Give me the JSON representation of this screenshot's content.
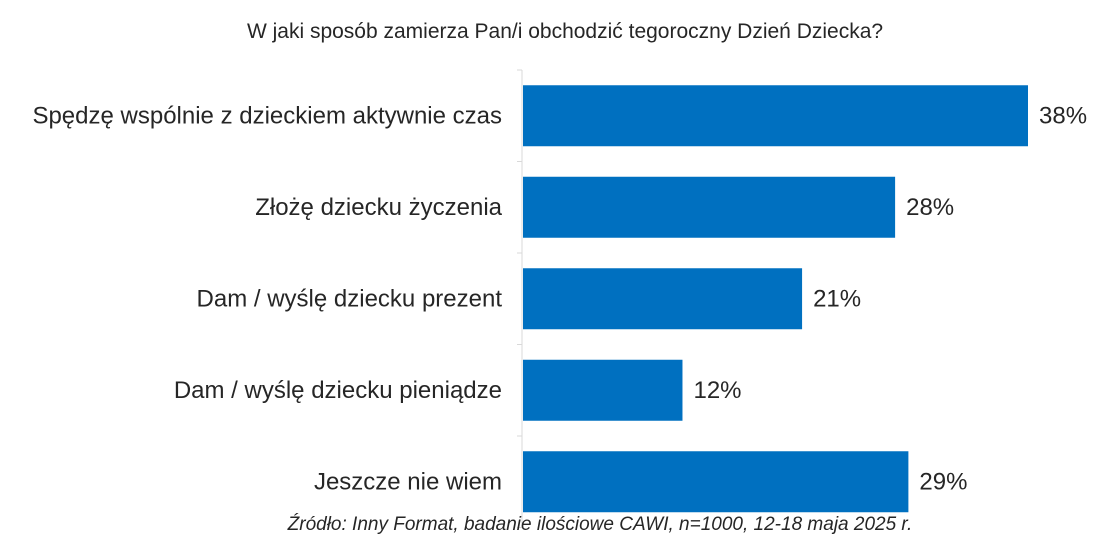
{
  "chart_data": {
    "type": "bar",
    "orientation": "horizontal",
    "title": "W jaki sposób zamierza Pan/i obchodzić tegoroczny Dzień Dziecka?",
    "categories": [
      "Spędzę wspólnie z dzieckiem aktywnie czas",
      "Złożę dziecku życzenia",
      "Dam / wyślę dziecku prezent",
      "Dam / wyślę dziecku pieniądze",
      "Jeszcze nie wiem"
    ],
    "values": [
      38,
      28,
      21,
      12,
      29
    ],
    "value_labels": [
      "38%",
      "28%",
      "21%",
      "12%",
      "29%"
    ],
    "unit": "%",
    "xlim": [
      0,
      40
    ],
    "grid": false,
    "legend": "none",
    "bar_color": "#0070C0",
    "source": "Źródło: Inny Format, badanie ilościowe CAWI, n=1000, 12-18 maja 2025 r."
  }
}
